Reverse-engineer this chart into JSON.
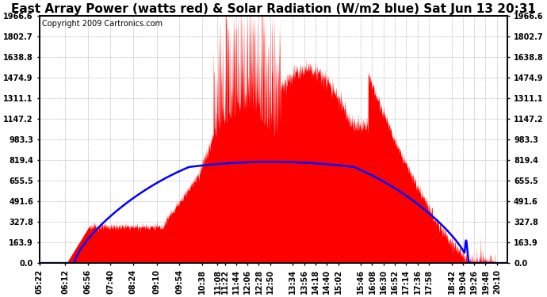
{
  "title": "East Array Power (watts red) & Solar Radiation (W/m2 blue) Sat Jun 13 20:31",
  "copyright": "Copyright 2009 Cartronics.com",
  "background_color": "#ffffff",
  "plot_bg_color": "#ffffff",
  "grid_color": "#999999",
  "yticks": [
    0.0,
    163.9,
    327.8,
    491.6,
    655.5,
    819.4,
    983.3,
    1147.2,
    1311.1,
    1474.9,
    1638.8,
    1802.7,
    1966.6
  ],
  "ymax": 1966.6,
  "ymin": 0.0,
  "xtick_labels": [
    "05:22",
    "06:12",
    "06:56",
    "07:40",
    "08:24",
    "09:10",
    "09:54",
    "10:38",
    "11:08",
    "11:22",
    "11:44",
    "12:06",
    "12:28",
    "12:50",
    "13:34",
    "13:56",
    "14:18",
    "14:40",
    "15:02",
    "15:46",
    "16:08",
    "16:30",
    "16:52",
    "17:14",
    "17:36",
    "17:58",
    "18:42",
    "19:04",
    "19:26",
    "19:48",
    "20:10"
  ],
  "red_fill_color": "#ff0000",
  "blue_line_color": "#0000ff",
  "title_fontsize": 11,
  "tick_fontsize": 7,
  "copyright_fontsize": 7
}
